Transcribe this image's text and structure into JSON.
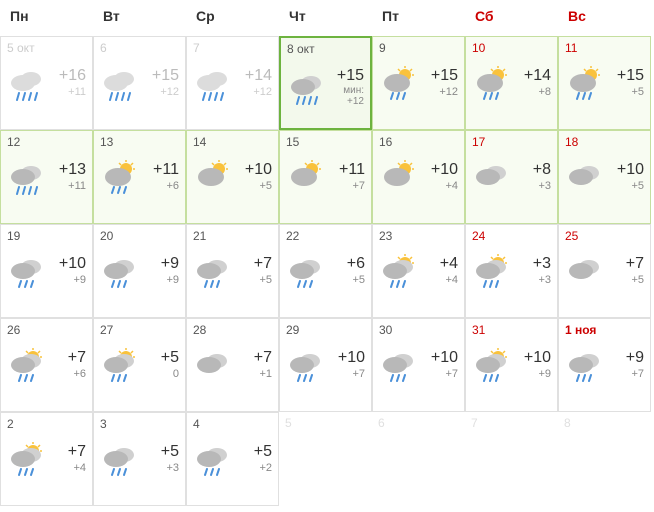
{
  "headers": [
    "Пн",
    "Вт",
    "Ср",
    "Чт",
    "Пт",
    "Сб",
    "Вс"
  ],
  "header_weekend": [
    false,
    false,
    false,
    false,
    false,
    true,
    true
  ],
  "weekdays_count": 7,
  "icon_palette": {
    "cloud_main": "#b8b8b8",
    "cloud_back": "#d0d0d0",
    "cloud_past": "#dcdcdc",
    "sun": "#f9c23c",
    "rain": "#4a90d9"
  },
  "cells": [
    {
      "date": "5 окт",
      "state": "past",
      "icon": "rain-heavy",
      "high": "+16",
      "low": "+11",
      "weekend": false
    },
    {
      "date": "6",
      "state": "past",
      "icon": "rain-heavy",
      "high": "+15",
      "low": "+12",
      "weekend": false
    },
    {
      "date": "7",
      "state": "past",
      "icon": "rain-heavy",
      "high": "+14",
      "low": "+12",
      "weekend": false
    },
    {
      "date": "8 окт",
      "state": "today",
      "icon": "rain-heavy",
      "high": "+15",
      "low": "мин: +12",
      "min_label": true,
      "weekend": false
    },
    {
      "date": "9",
      "state": "forecast",
      "icon": "sun-rain",
      "high": "+15",
      "low": "+12",
      "weekend": false
    },
    {
      "date": "10",
      "state": "forecast",
      "icon": "sun-rain",
      "high": "+14",
      "low": "+8",
      "weekend": true
    },
    {
      "date": "11",
      "state": "forecast",
      "icon": "sun-rain",
      "high": "+15",
      "low": "+5",
      "weekend": true
    },
    {
      "date": "12",
      "state": "forecast",
      "icon": "rain-heavy",
      "high": "+13",
      "low": "+11",
      "weekend": false
    },
    {
      "date": "13",
      "state": "forecast",
      "icon": "sun-rain",
      "high": "+11",
      "low": "+6",
      "weekend": false
    },
    {
      "date": "14",
      "state": "forecast",
      "icon": "sun-cloud",
      "high": "+10",
      "low": "+5",
      "weekend": false
    },
    {
      "date": "15",
      "state": "forecast",
      "icon": "sun-cloud",
      "high": "+11",
      "low": "+7",
      "weekend": false
    },
    {
      "date": "16",
      "state": "forecast",
      "icon": "sun-cloud",
      "high": "+10",
      "low": "+4",
      "weekend": false
    },
    {
      "date": "17",
      "state": "forecast",
      "icon": "overcast",
      "high": "+8",
      "low": "+3",
      "weekend": true
    },
    {
      "date": "18",
      "state": "forecast",
      "icon": "overcast",
      "high": "+10",
      "low": "+5",
      "weekend": true
    },
    {
      "date": "19",
      "state": "normal",
      "icon": "rain",
      "high": "+10",
      "low": "+9",
      "weekend": false
    },
    {
      "date": "20",
      "state": "normal",
      "icon": "rain",
      "high": "+9",
      "low": "+9",
      "weekend": false
    },
    {
      "date": "21",
      "state": "normal",
      "icon": "rain",
      "high": "+7",
      "low": "+5",
      "weekend": false
    },
    {
      "date": "22",
      "state": "normal",
      "icon": "rain",
      "high": "+6",
      "low": "+5",
      "weekend": false
    },
    {
      "date": "23",
      "state": "normal",
      "icon": "cloud-sun-rain",
      "high": "+4",
      "low": "+4",
      "weekend": false
    },
    {
      "date": "24",
      "state": "normal",
      "icon": "cloud-sun-rain",
      "high": "+3",
      "low": "+3",
      "weekend": true
    },
    {
      "date": "25",
      "state": "normal",
      "icon": "overcast",
      "high": "+7",
      "low": "+5",
      "weekend": true
    },
    {
      "date": "26",
      "state": "normal",
      "icon": "cloud-sun-rain",
      "high": "+7",
      "low": "+6",
      "weekend": false
    },
    {
      "date": "27",
      "state": "normal",
      "icon": "cloud-sun-rain",
      "high": "+5",
      "low": "0",
      "weekend": false
    },
    {
      "date": "28",
      "state": "normal",
      "icon": "overcast",
      "high": "+7",
      "low": "+1",
      "weekend": false
    },
    {
      "date": "29",
      "state": "normal",
      "icon": "rain",
      "high": "+10",
      "low": "+7",
      "weekend": false
    },
    {
      "date": "30",
      "state": "normal",
      "icon": "rain",
      "high": "+10",
      "low": "+7",
      "weekend": false
    },
    {
      "date": "31",
      "state": "normal",
      "icon": "cloud-sun-rain",
      "high": "+10",
      "low": "+9",
      "weekend": true
    },
    {
      "date": "1 ноя",
      "state": "normal",
      "icon": "rain",
      "high": "+9",
      "low": "+7",
      "weekend": true,
      "holiday": true
    },
    {
      "date": "2",
      "state": "normal",
      "icon": "cloud-sun-rain",
      "high": "+7",
      "low": "+4",
      "weekend": false
    },
    {
      "date": "3",
      "state": "normal",
      "icon": "rain",
      "high": "+5",
      "low": "+3",
      "weekend": false
    },
    {
      "date": "4",
      "state": "normal",
      "icon": "rain",
      "high": "+5",
      "low": "+2",
      "weekend": false
    },
    {
      "date": "5",
      "state": "ghost",
      "weekend": false
    },
    {
      "date": "6",
      "state": "ghost",
      "weekend": false
    },
    {
      "date": "7",
      "state": "ghost",
      "weekend": true
    },
    {
      "date": "8",
      "state": "ghost",
      "weekend": true
    }
  ]
}
